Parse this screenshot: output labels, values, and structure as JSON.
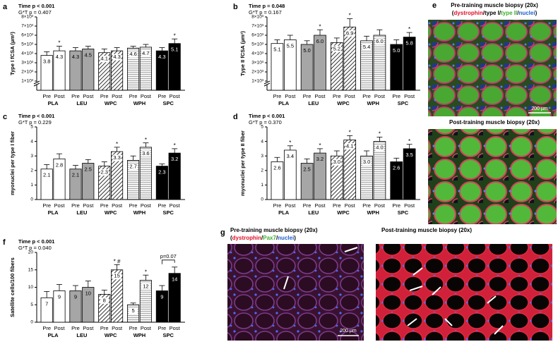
{
  "chart_data": [
    {
      "type": "bar",
      "panel": "a",
      "stats": [
        "Time p < 0.001",
        "G*T p = 0.407"
      ],
      "y_label": "Type I fCSA (µm²)",
      "groups": [
        "PLA",
        "LEU",
        "WPC",
        "WPH",
        "SPC"
      ],
      "categories": [
        "Pre",
        "Post",
        "Pre",
        "Post",
        "Pre",
        "Post",
        "Pre",
        "Post",
        "Pre",
        "Post"
      ],
      "values": [
        3800,
        4300,
        4300,
        4500,
        4100,
        4300,
        4600,
        4700,
        4300,
        5100
      ],
      "value_labels": [
        "3.8",
        "4.3",
        "4.3",
        "4.5",
        "4.1",
        "4.3",
        "4.6",
        "4.7",
        "4.3",
        "5.1"
      ],
      "errors": [
        400,
        500,
        350,
        300,
        400,
        350,
        200,
        300,
        350,
        500
      ],
      "significance": [
        null,
        "*",
        null,
        null,
        null,
        null,
        null,
        null,
        null,
        "*"
      ],
      "ylim": [
        0,
        8000
      ],
      "axis_break": true,
      "yticks": [
        {
          "value": 1000,
          "label": "1×10³"
        },
        {
          "value": 2000,
          "label": "2×10³"
        },
        {
          "value": 3000,
          "label": "3×10³"
        },
        {
          "value": 4000,
          "label": "4×10³"
        },
        {
          "value": 5000,
          "label": "5×10³"
        },
        {
          "value": 6000,
          "label": "6×10³"
        },
        {
          "value": 7000,
          "label": "7×10³"
        },
        {
          "value": 8000,
          "label": "8×10³"
        }
      ]
    },
    {
      "type": "bar",
      "panel": "b",
      "stats": [
        "Time p = 0.048",
        "G*T p = 0.167"
      ],
      "y_label": "Type II fCSA (µm²)",
      "groups": [
        "PLA",
        "LEU",
        "WPC",
        "WPH",
        "SPC"
      ],
      "categories": [
        "Pre",
        "Post",
        "Pre",
        "Post",
        "Pre",
        "Post",
        "Pre",
        "Post",
        "Pre",
        "Post"
      ],
      "values": [
        5100,
        5500,
        5000,
        6000,
        5200,
        6900,
        5400,
        6000,
        5000,
        5800
      ],
      "value_labels": [
        "5.1",
        "5.5",
        "5.0",
        "6.0",
        "5.2",
        "6.9",
        "5.4",
        "6.0",
        "5.0",
        "5.8"
      ],
      "errors": [
        400,
        500,
        400,
        600,
        500,
        900,
        500,
        600,
        500,
        500
      ],
      "significance": [
        null,
        null,
        null,
        "*",
        null,
        "*",
        null,
        null,
        null,
        "*"
      ],
      "ylim": [
        0,
        8000
      ],
      "axis_break": true,
      "yticks": [
        {
          "value": 1000,
          "label": "1×10³"
        },
        {
          "value": 2000,
          "label": "2×10³"
        },
        {
          "value": 3000,
          "label": "3×10³"
        },
        {
          "value": 4000,
          "label": "4×10³"
        },
        {
          "value": 5000,
          "label": "5×10³"
        },
        {
          "value": 6000,
          "label": "6×10³"
        },
        {
          "value": 7000,
          "label": "7×10³"
        },
        {
          "value": 8000,
          "label": "8×10³"
        }
      ]
    },
    {
      "type": "bar",
      "panel": "c",
      "stats": [
        "Time p < 0.001",
        "G*T p = 0.229"
      ],
      "y_label": "myonuclei per type I fiber",
      "groups": [
        "PLA",
        "LEU",
        "WPC",
        "WPH",
        "SPC"
      ],
      "categories": [
        "Pre",
        "Post",
        "Pre",
        "Post",
        "Pre",
        "Post",
        "Pre",
        "Post",
        "Pre",
        "Post"
      ],
      "values": [
        2.1,
        2.8,
        2.1,
        2.5,
        2.3,
        3.3,
        2.7,
        3.6,
        2.3,
        3.2
      ],
      "errors": [
        0.3,
        0.35,
        0.25,
        0.25,
        0.3,
        0.3,
        0.3,
        0.3,
        0.15,
        0.3
      ],
      "significance": [
        null,
        null,
        null,
        null,
        null,
        "*",
        null,
        "*",
        null,
        "*"
      ],
      "ylim": [
        0,
        5
      ],
      "yticks": [
        0,
        1,
        2,
        3,
        4,
        5
      ]
    },
    {
      "type": "bar",
      "panel": "d",
      "stats": [
        "Time p < 0.001",
        "G*T p = 0.370"
      ],
      "y_label": "myonuclei per type II fiber",
      "groups": [
        "PLA",
        "LEU",
        "WPC",
        "WPH",
        "SPC"
      ],
      "categories": [
        "Pre",
        "Post",
        "Pre",
        "Post",
        "Pre",
        "Post",
        "Pre",
        "Post",
        "Pre",
        "Post"
      ],
      "values": [
        2.6,
        3.4,
        2.5,
        3.2,
        3.0,
        4.1,
        3.0,
        4.0,
        2.6,
        3.5
      ],
      "value_labels": [
        "2.6",
        "3.4",
        "2.5",
        "3.2",
        "3.0",
        "4.1",
        "3.0",
        "4.0",
        "2.6",
        "3.5"
      ],
      "errors": [
        0.3,
        0.3,
        0.3,
        0.3,
        0.35,
        0.3,
        0.35,
        0.3,
        0.25,
        0.3
      ],
      "significance": [
        null,
        "*",
        null,
        "*",
        null,
        "*",
        null,
        "*",
        null,
        "*"
      ],
      "ylim": [
        0,
        5
      ],
      "yticks": [
        0,
        1,
        2,
        3,
        4,
        5
      ]
    },
    {
      "type": "bar",
      "panel": "f",
      "stats": [
        "Time p < 0.001",
        "G*T p = 0.040"
      ],
      "y_label": "Satellite cells/100 fibers",
      "groups": [
        "PLA",
        "LEU",
        "WPC",
        "WPH",
        "SPC"
      ],
      "categories": [
        "Pre",
        "Post",
        "Pre",
        "Post",
        "Pre",
        "Post",
        "Pre",
        "Post",
        "Pre",
        "Post"
      ],
      "values": [
        7,
        9,
        9,
        10,
        8,
        15,
        5,
        12,
        9,
        14
      ],
      "errors": [
        1.8,
        1.8,
        1.5,
        1.8,
        1.2,
        1.5,
        0.5,
        1.5,
        1.5,
        1.8
      ],
      "significance": [
        null,
        null,
        null,
        null,
        null,
        "* #",
        null,
        "*",
        null,
        null
      ],
      "bracket": {
        "group": 4,
        "text": "p=0.07"
      },
      "ylim": [
        0,
        20
      ],
      "yticks": [
        0,
        5,
        10,
        15,
        20
      ]
    }
  ],
  "group_styles": [
    {
      "color": "#ffffff"
    },
    {
      "color": "#a6a6a6"
    },
    {
      "color": "#ffffff",
      "pattern": "diagonal"
    },
    {
      "color": "#eeeeee",
      "pattern": "horizontal"
    },
    {
      "color": "#000000"
    }
  ],
  "images": {
    "e": {
      "panel": "e",
      "titles": [
        "Pre-training muscle biopsy (20x)",
        "Post-training muscle biopsy (20x)"
      ],
      "legend": [
        {
          "text": "(",
          "color": "#000000"
        },
        {
          "text": "dystrophin",
          "color": "#e0102a"
        },
        {
          "text": "/type I/",
          "color": "#000000"
        },
        {
          "text": "type II",
          "color": "#3cb02c"
        },
        {
          "text": "/",
          "color": "#000000"
        },
        {
          "text": "nuclei",
          "color": "#1f5fd0"
        },
        {
          "text": ")",
          "color": "#000000"
        }
      ],
      "scale_bar": "200 µm"
    },
    "g": {
      "panel": "g",
      "titles": [
        "Pre-training muscle biopsy (20x)",
        "Post-training muscle biopsy (20x)"
      ],
      "legend": [
        {
          "text": "(",
          "color": "#000000"
        },
        {
          "text": "dystrophin",
          "color": "#e0102a"
        },
        {
          "text": "/",
          "color": "#000000"
        },
        {
          "text": "Pax7",
          "color": "#3cb02c"
        },
        {
          "text": "/",
          "color": "#000000"
        },
        {
          "text": "nuclei",
          "color": "#1f5fd0"
        },
        {
          "text": ")",
          "color": "#000000"
        }
      ],
      "scale_bar": "200 µm"
    }
  }
}
